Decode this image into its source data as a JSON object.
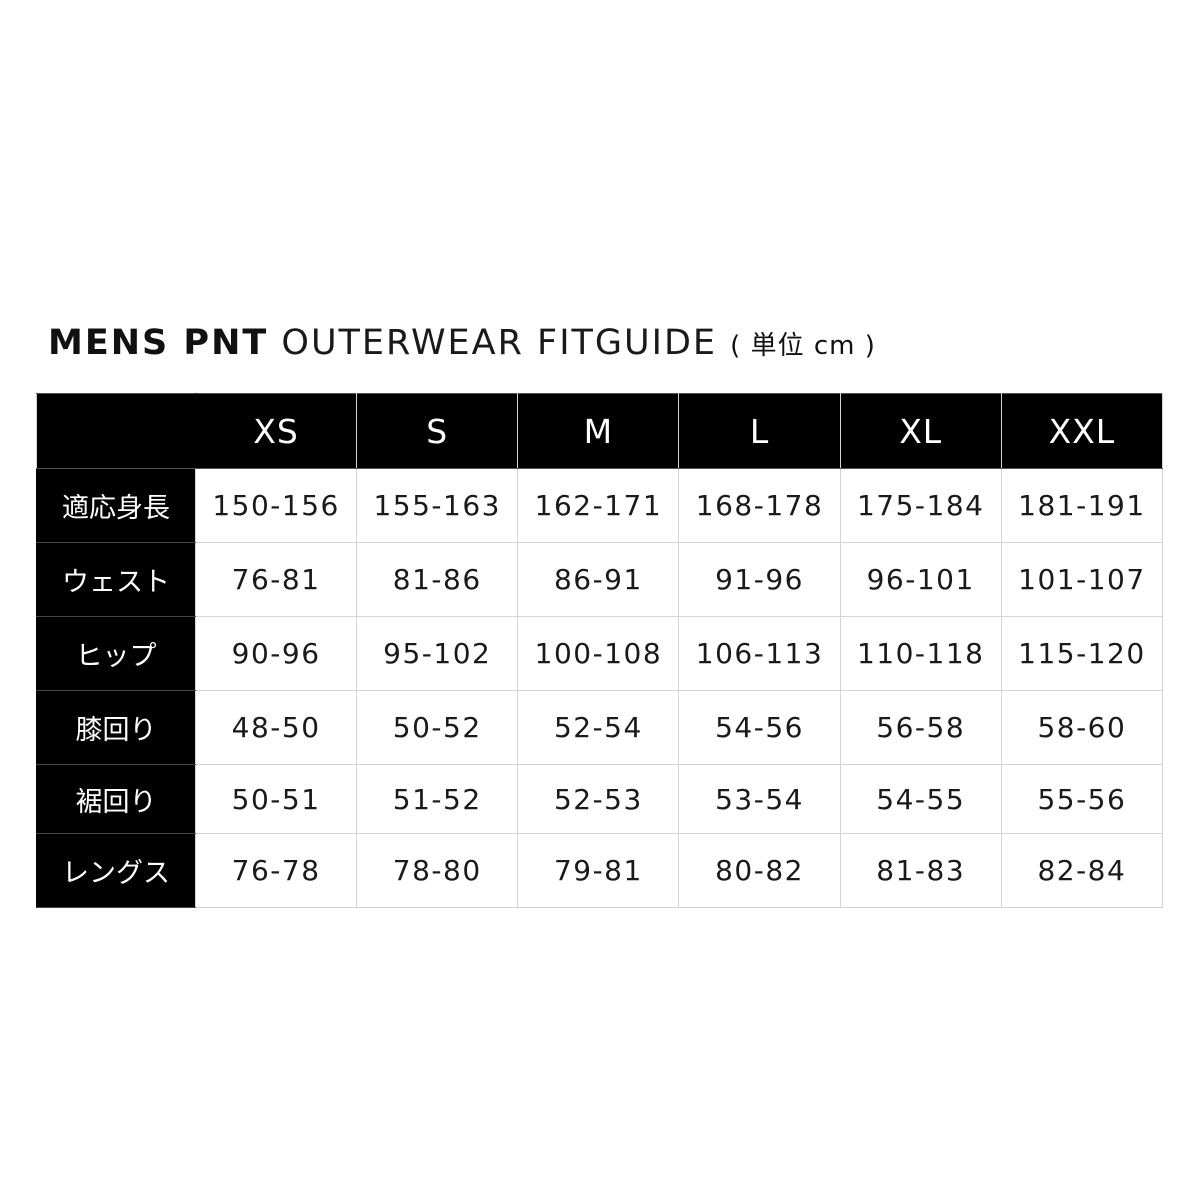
{
  "title": {
    "bold": "MENS PNT",
    "light": "OUTERWEAR FITGUIDE",
    "unit": "( 単位 cm )"
  },
  "table": {
    "corner": "",
    "columns": [
      "XS",
      "S",
      "M",
      "L",
      "XL",
      "XXL"
    ],
    "rows": [
      {
        "label": "適応身長",
        "values": [
          "150-156",
          "155-163",
          "162-171",
          "168-178",
          "175-184",
          "181-191"
        ]
      },
      {
        "label": "ウェスト",
        "values": [
          "76-81",
          "81-86",
          "86-91",
          "91-96",
          "96-101",
          "101-107"
        ]
      },
      {
        "label": "ヒップ",
        "values": [
          "90-96",
          "95-102",
          "100-108",
          "106-113",
          "110-118",
          "115-120"
        ]
      },
      {
        "label": "膝回り",
        "values": [
          "48-50",
          "50-52",
          "52-54",
          "54-56",
          "56-58",
          "58-60"
        ]
      },
      {
        "label": "裾回り",
        "values": [
          "50-51",
          "51-52",
          "52-53",
          "53-54",
          "54-55",
          "55-56"
        ]
      },
      {
        "label": "レングス",
        "values": [
          "76-78",
          "78-80",
          "79-81",
          "80-82",
          "81-83",
          "82-84"
        ]
      }
    ]
  },
  "colors": {
    "header_bg": "#000000",
    "header_text": "#ffffff",
    "grid": "#d4d4d4"
  }
}
